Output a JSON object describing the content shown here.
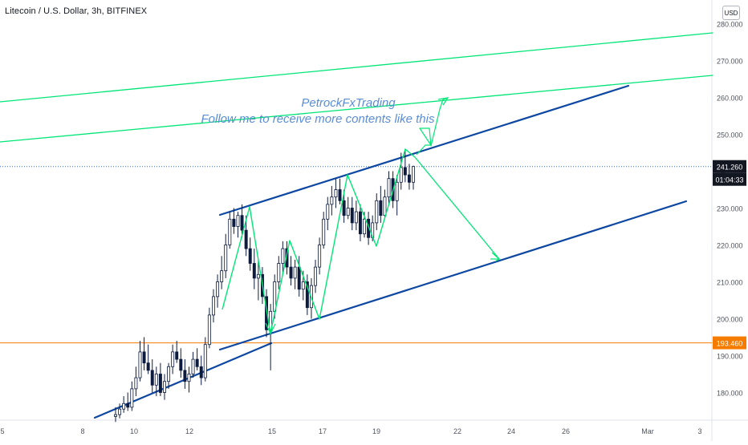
{
  "header": {
    "title": "Litecoin / U.S. Dollar, 3h, BITFINEX",
    "currency_button": "USD"
  },
  "watermark": {
    "line1": "PetrockFxTrading",
    "line2": "Follow me to receive more contents like this"
  },
  "price_tags": {
    "last_price": "241.260",
    "countdown": "01:04:33",
    "support_level": "193.460",
    "colors": {
      "last_price_bg": "#131722",
      "support_bg": "#f57c00"
    }
  },
  "chart_data": {
    "type": "candlestick",
    "symbol": "Litecoin / U.S. Dollar",
    "interval": "3h",
    "exchange": "BITFINEX",
    "y_axis": {
      "range": [
        173,
        281
      ],
      "ticks": [
        "180.000",
        "190.000",
        "200.000",
        "210.000",
        "220.000",
        "230.000",
        "240.000",
        "250.000",
        "260.000",
        "270.000",
        "280.000"
      ]
    },
    "x_axis": {
      "ticks": [
        "5",
        "8",
        "10",
        "12",
        "15",
        "17",
        "19",
        "22",
        "24",
        "26",
        "Mar",
        "3"
      ]
    },
    "levels": {
      "last_price": 241.26,
      "horizontal_support": 193.46
    },
    "candles_ohlc": [
      [
        173.5,
        176,
        172,
        174
      ],
      [
        174,
        177,
        173,
        175.5
      ],
      [
        175.5,
        179,
        174.5,
        177
      ],
      [
        177,
        180,
        175,
        176
      ],
      [
        176,
        183,
        175,
        181
      ],
      [
        181,
        187,
        179,
        184
      ],
      [
        184,
        194,
        183,
        191
      ],
      [
        191,
        195,
        186,
        188
      ],
      [
        188,
        193,
        185,
        186
      ],
      [
        186,
        189,
        180,
        182
      ],
      [
        182,
        187,
        179,
        185
      ],
      [
        185,
        188,
        179,
        180
      ],
      [
        180,
        185,
        178,
        183
      ],
      [
        183,
        188,
        181,
        187
      ],
      [
        187,
        193,
        185,
        191
      ],
      [
        191,
        194,
        188,
        189
      ],
      [
        189,
        192,
        184,
        186
      ],
      [
        186,
        189,
        181,
        183
      ],
      [
        183,
        187,
        180,
        185
      ],
      [
        185,
        191,
        184,
        189
      ],
      [
        189,
        192,
        186,
        187
      ],
      [
        187,
        190,
        182,
        184
      ],
      [
        184,
        195,
        183,
        193
      ],
      [
        193,
        203,
        192,
        201
      ],
      [
        201,
        208,
        199,
        206
      ],
      [
        206,
        212,
        203,
        210
      ],
      [
        210,
        217,
        208,
        213
      ],
      [
        213,
        223,
        211,
        220
      ],
      [
        220,
        229,
        219,
        227
      ],
      [
        227,
        230,
        223,
        225
      ],
      [
        225,
        229,
        222,
        228
      ],
      [
        228,
        231,
        222,
        224
      ],
      [
        224,
        228,
        217,
        219
      ],
      [
        219,
        222,
        213,
        215
      ],
      [
        215,
        219,
        208,
        211
      ],
      [
        211,
        216,
        205,
        212
      ],
      [
        212,
        214,
        204,
        206
      ],
      [
        206,
        208,
        195,
        197
      ],
      [
        197,
        204,
        186,
        202
      ],
      [
        202,
        212,
        200,
        210
      ],
      [
        210,
        217,
        208,
        215
      ],
      [
        215,
        221,
        212,
        219
      ],
      [
        219,
        221,
        212,
        214
      ],
      [
        214,
        217,
        209,
        211
      ],
      [
        211,
        216,
        208,
        214
      ],
      [
        214,
        217,
        206,
        208
      ],
      [
        208,
        213,
        205,
        210
      ],
      [
        210,
        212,
        201,
        203
      ],
      [
        203,
        211,
        200,
        209
      ],
      [
        209,
        216,
        207,
        214
      ],
      [
        214,
        222,
        212,
        220
      ],
      [
        220,
        229,
        219,
        227
      ],
      [
        227,
        233,
        224,
        231
      ],
      [
        231,
        236,
        228,
        233
      ],
      [
        233,
        238,
        230,
        235
      ],
      [
        235,
        238,
        231,
        232
      ],
      [
        232,
        235,
        226,
        228
      ],
      [
        228,
        233,
        227,
        230
      ],
      [
        230,
        233,
        224,
        226
      ],
      [
        226,
        232,
        224,
        229
      ],
      [
        229,
        231,
        221,
        223
      ],
      [
        223,
        229,
        222,
        227
      ],
      [
        227,
        229,
        220,
        222
      ],
      [
        222,
        228,
        221,
        226
      ],
      [
        226,
        234,
        224,
        232
      ],
      [
        232,
        236,
        226,
        228
      ],
      [
        228,
        235,
        227,
        233
      ],
      [
        233,
        240,
        231,
        238
      ],
      [
        238,
        240,
        230,
        232
      ],
      [
        232,
        239,
        228,
        237
      ],
      [
        237,
        245,
        235,
        241
      ],
      [
        241,
        246,
        237,
        239
      ],
      [
        239,
        242,
        235,
        237
      ],
      [
        237,
        241.5,
        235,
        241.26
      ]
    ],
    "trendlines": [
      {
        "name": "upper-channel",
        "color": "#0d47a1",
        "points": [
          [
            274,
            268
          ],
          [
            783,
            107
          ]
        ]
      },
      {
        "name": "lower-channel",
        "color": "#0d47a1",
        "points": [
          [
            274,
            436
          ],
          [
            855,
            251
          ]
        ]
      },
      {
        "name": "long-support",
        "color": "#0d47a1",
        "points": [
          [
            118,
            521
          ],
          [
            338,
            428
          ]
        ]
      },
      {
        "name": "resistance-1",
        "color": "#00e676",
        "points": [
          [
            0,
            127
          ],
          [
            888,
            41
          ]
        ]
      },
      {
        "name": "resistance-2",
        "color": "#00e676",
        "points": [
          [
            0,
            177
          ],
          [
            888,
            94
          ]
        ]
      }
    ],
    "zigzag_path": [
      [
        277,
        386
      ],
      [
        311,
        258
      ],
      [
        337,
        416
      ],
      [
        361,
        300
      ],
      [
        398,
        398
      ],
      [
        433,
        218
      ],
      [
        469,
        307
      ],
      [
        505,
        186
      ],
      [
        517,
        196
      ]
    ],
    "projection_path": [
      [
        517,
        196
      ],
      [
        622,
        323
      ],
      [
        617,
        326
      ]
    ],
    "breakout_path": [
      [
        519,
        193
      ],
      [
        530,
        181
      ],
      [
        537,
        181
      ],
      [
        523,
        160
      ],
      [
        535,
        160
      ],
      [
        537,
        182
      ],
      [
        548,
        136
      ],
      [
        552,
        124
      ],
      [
        558,
        122
      ]
    ]
  }
}
